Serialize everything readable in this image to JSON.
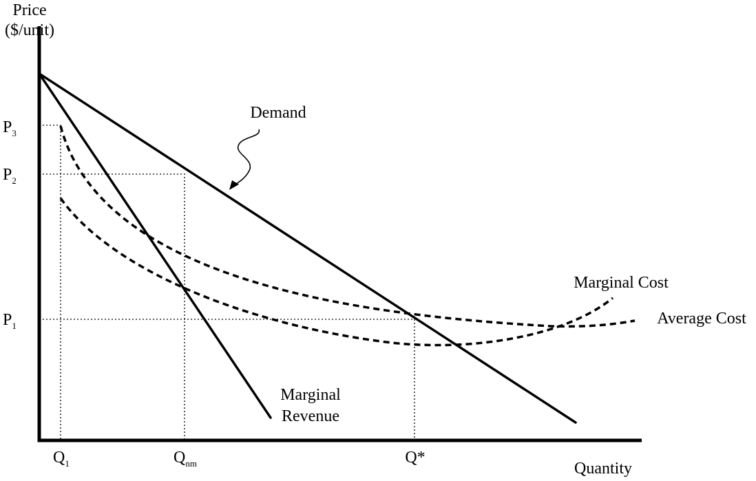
{
  "axes": {
    "y_label_line1": "Price",
    "y_label_line2": "($/unit)",
    "x_label": "Quantity"
  },
  "price_ticks": {
    "p3": {
      "main": "P",
      "sub": "3"
    },
    "p2": {
      "main": "P",
      "sub": "2"
    },
    "p1": {
      "main": "P",
      "sub": "1"
    }
  },
  "quantity_ticks": {
    "q1": {
      "main": "Q",
      "sub": "1"
    },
    "qnm": {
      "main": "Q",
      "sub": "nm"
    },
    "qstar": {
      "main": "Q*"
    }
  },
  "curves": {
    "demand": "Demand",
    "marginal_revenue_line1": "Marginal",
    "marginal_revenue_line2": "Revenue",
    "marginal_cost": "Marginal Cost",
    "average_cost": "Average Cost"
  }
}
